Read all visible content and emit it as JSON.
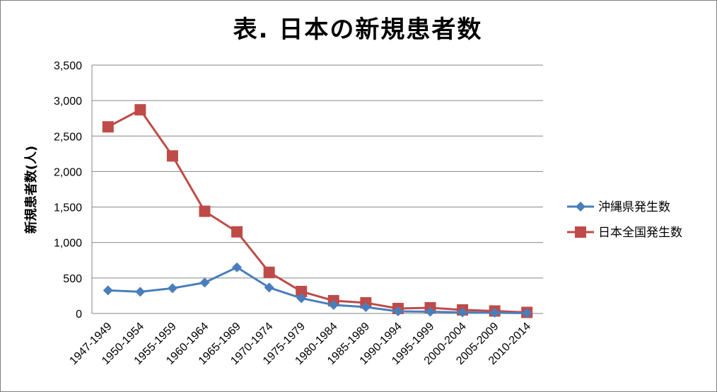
{
  "chart_data": {
    "type": "line",
    "title": "表. 日本の新規患者数",
    "xlabel": "",
    "ylabel": "新規患者数(人)",
    "categories": [
      "1947-1949",
      "1950-1954",
      "1955-1959",
      "1960-1964",
      "1965-1969",
      "1970-1974",
      "1975-1979",
      "1980-1984",
      "1985-1989",
      "1990-1994",
      "1995-1999",
      "2000-2004",
      "2005-2009",
      "2010-2014"
    ],
    "ylim": [
      0,
      3500
    ],
    "yticks": [
      0,
      500,
      1000,
      1500,
      2000,
      2500,
      3000,
      3500
    ],
    "ytick_labels": [
      "0",
      "500",
      "1,000",
      "1,500",
      "2,000",
      "2,500",
      "3,000",
      "3,500"
    ],
    "grid": true,
    "legend_position": "right",
    "series": [
      {
        "name": "沖縄県発生数",
        "color": "#4a7ebb",
        "marker": "diamond",
        "values": [
          325,
          305,
          355,
          435,
          650,
          365,
          215,
          120,
          90,
          30,
          25,
          15,
          10,
          5
        ]
      },
      {
        "name": "日本全国発生数",
        "color": "#be4b48",
        "marker": "square",
        "values": [
          2630,
          2870,
          2220,
          1440,
          1150,
          580,
          310,
          180,
          150,
          70,
          80,
          50,
          35,
          15
        ]
      }
    ]
  }
}
